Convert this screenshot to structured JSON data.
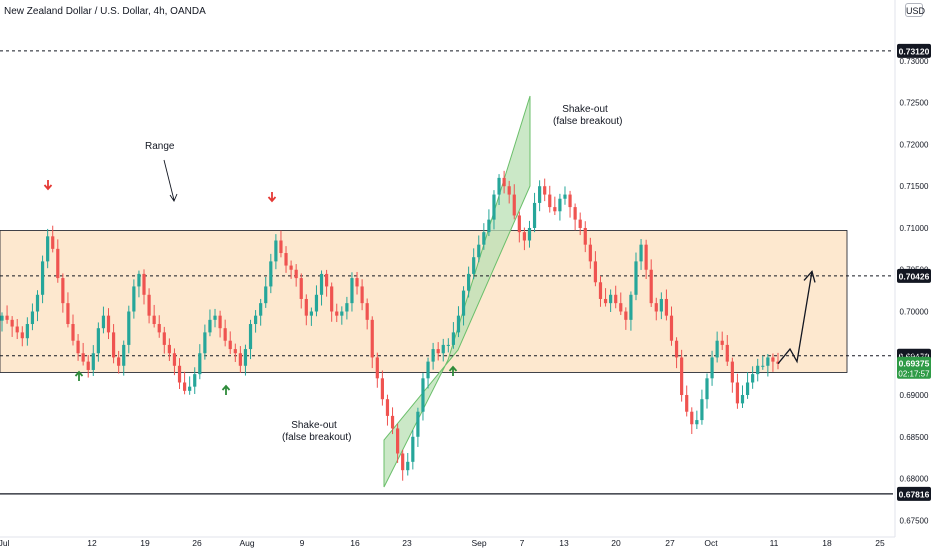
{
  "header": {
    "title": "New Zealand Dollar / U.S. Dollar, 4h, OANDA",
    "currency": "USD"
  },
  "annotations": {
    "range": "Range",
    "shakeout_top_1": "Shake-out",
    "shakeout_top_2": "(false breakout)",
    "shakeout_bottom_1": "Shake-out",
    "shakeout_bottom_2": "(false breakout)"
  },
  "colors": {
    "up": "#26a69a",
    "down": "#ef5350",
    "range_fill": "#fde8cf",
    "channel_fill": "#b9e0b4",
    "current_price": "#2e9b46"
  },
  "chart_data": {
    "type": "candlestick",
    "title": "New Zealand Dollar / U.S. Dollar, 4h, OANDA",
    "ylim": [
      0.673,
      0.7355
    ],
    "y_ticks": [
      "0.67500",
      "0.68000",
      "0.68500",
      "0.69000",
      "0.69500",
      "0.70000",
      "0.70500",
      "0.71000",
      "0.71500",
      "0.72000",
      "0.72500",
      "0.73000"
    ],
    "x_ticks": [
      "Jul",
      "12",
      "19",
      "26",
      "Aug",
      "9",
      "16",
      "23",
      "Sep",
      "7",
      "13",
      "20",
      "27",
      "Oct",
      "11",
      "18",
      "25"
    ],
    "price_levels": [
      {
        "value": 0.7312,
        "label": "0.73120",
        "style": "dashed"
      },
      {
        "value": 0.70426,
        "label": "0.70426",
        "style": "dashed"
      },
      {
        "value": 0.6947,
        "label": "0.69470",
        "style": "dashed"
      },
      {
        "value": 0.67816,
        "label": "0.67816",
        "style": "solid"
      }
    ],
    "current_price": {
      "value": 0.69375,
      "label": "0.69375",
      "countdown": "02:17:57"
    },
    "range_zone": {
      "top": 0.7097,
      "bottom": 0.6927
    },
    "price_path": [
      0.6995,
      0.699,
      0.6982,
      0.6975,
      0.6968,
      0.6985,
      0.7,
      0.702,
      0.706,
      0.709,
      0.7075,
      0.704,
      0.701,
      0.6985,
      0.6965,
      0.695,
      0.694,
      0.693,
      0.695,
      0.698,
      0.6995,
      0.6975,
      0.6945,
      0.6935,
      0.696,
      0.7,
      0.703,
      0.7045,
      0.702,
      0.6995,
      0.6985,
      0.6975,
      0.696,
      0.695,
      0.6935,
      0.6915,
      0.6905,
      0.691,
      0.6925,
      0.695,
      0.6975,
      0.699,
      0.6995,
      0.698,
      0.6965,
      0.6955,
      0.695,
      0.6935,
      0.6955,
      0.6985,
      0.6995,
      0.701,
      0.703,
      0.706,
      0.7085,
      0.707,
      0.7055,
      0.705,
      0.704,
      0.7015,
      0.6995,
      0.7,
      0.702,
      0.7045,
      0.703,
      0.7,
      0.6995,
      0.7,
      0.701,
      0.704,
      0.703,
      0.701,
      0.699,
      0.6945,
      0.692,
      0.6895,
      0.6875,
      0.686,
      0.683,
      0.681,
      0.682,
      0.685,
      0.688,
      0.692,
      0.694,
      0.6955,
      0.695,
      0.696,
      0.696,
      0.6975,
      0.6995,
      0.7025,
      0.7045,
      0.7065,
      0.708,
      0.7095,
      0.711,
      0.714,
      0.716,
      0.715,
      0.714,
      0.7115,
      0.7095,
      0.7085,
      0.71,
      0.713,
      0.715,
      0.714,
      0.7125,
      0.712,
      0.7135,
      0.714,
      0.7125,
      0.711,
      0.71,
      0.708,
      0.706,
      0.7035,
      0.7015,
      0.701,
      0.702,
      0.701,
      0.7,
      0.699,
      0.702,
      0.706,
      0.708,
      0.705,
      0.701,
      0.7,
      0.7015,
      0.6995,
      0.6965,
      0.6945,
      0.69,
      0.688,
      0.6865,
      0.687,
      0.6895,
      0.692,
      0.6945,
      0.6965,
      0.696,
      0.694,
      0.6915,
      0.689,
      0.69,
      0.6915,
      0.6925,
      0.6935,
      0.6935,
      0.6945,
      0.694,
      0.69375
    ],
    "projection_path": [
      0.69375,
      0.6955,
      0.694,
      0.7048
    ]
  }
}
